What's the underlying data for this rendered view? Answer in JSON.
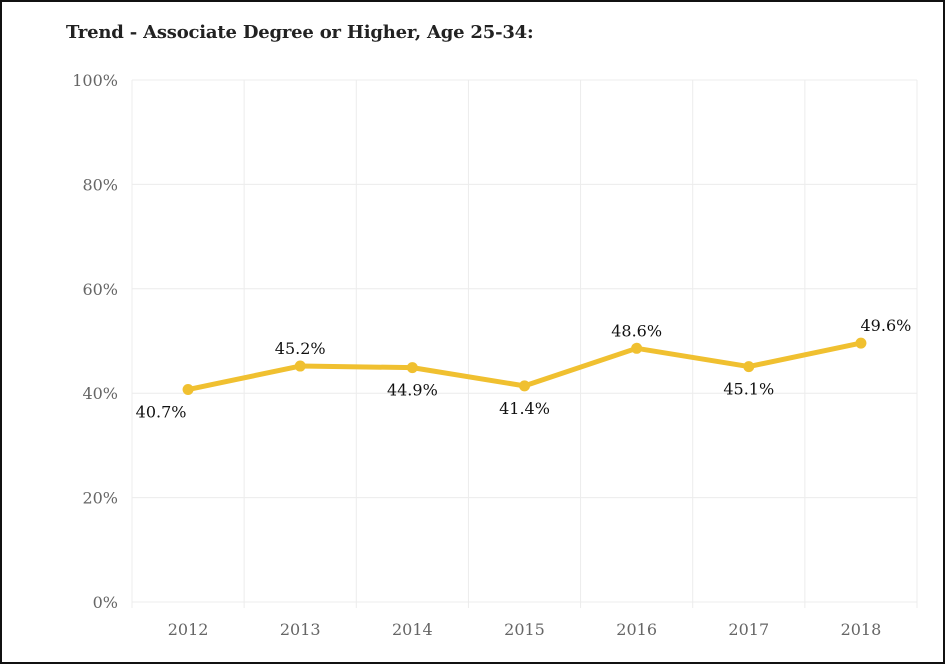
{
  "chart_data": {
    "type": "line",
    "title": "Trend - Associate Degree or Higher, Age 25-34:",
    "xlabel": "",
    "ylabel": "",
    "categories": [
      "2012",
      "2013",
      "2014",
      "2015",
      "2016",
      "2017",
      "2018"
    ],
    "series": [
      {
        "values": [
          40.7,
          45.2,
          44.9,
          41.4,
          48.6,
          45.1,
          49.6
        ],
        "data_labels": [
          "40.7%",
          "45.2%",
          "44.9%",
          "41.4%",
          "48.6%",
          "45.1%",
          "49.6%"
        ]
      }
    ],
    "ylim": [
      0,
      100
    ],
    "yticks": [
      0,
      20,
      40,
      60,
      80,
      100
    ],
    "ytick_labels": [
      "0%",
      "20%",
      "40%",
      "60%",
      "80%",
      "100%"
    ],
    "grid": true,
    "legend": "none",
    "colors": {
      "line": "#f0c030",
      "grid": "#ececec",
      "tick_text": "#666666",
      "label_text": "#111111"
    }
  }
}
